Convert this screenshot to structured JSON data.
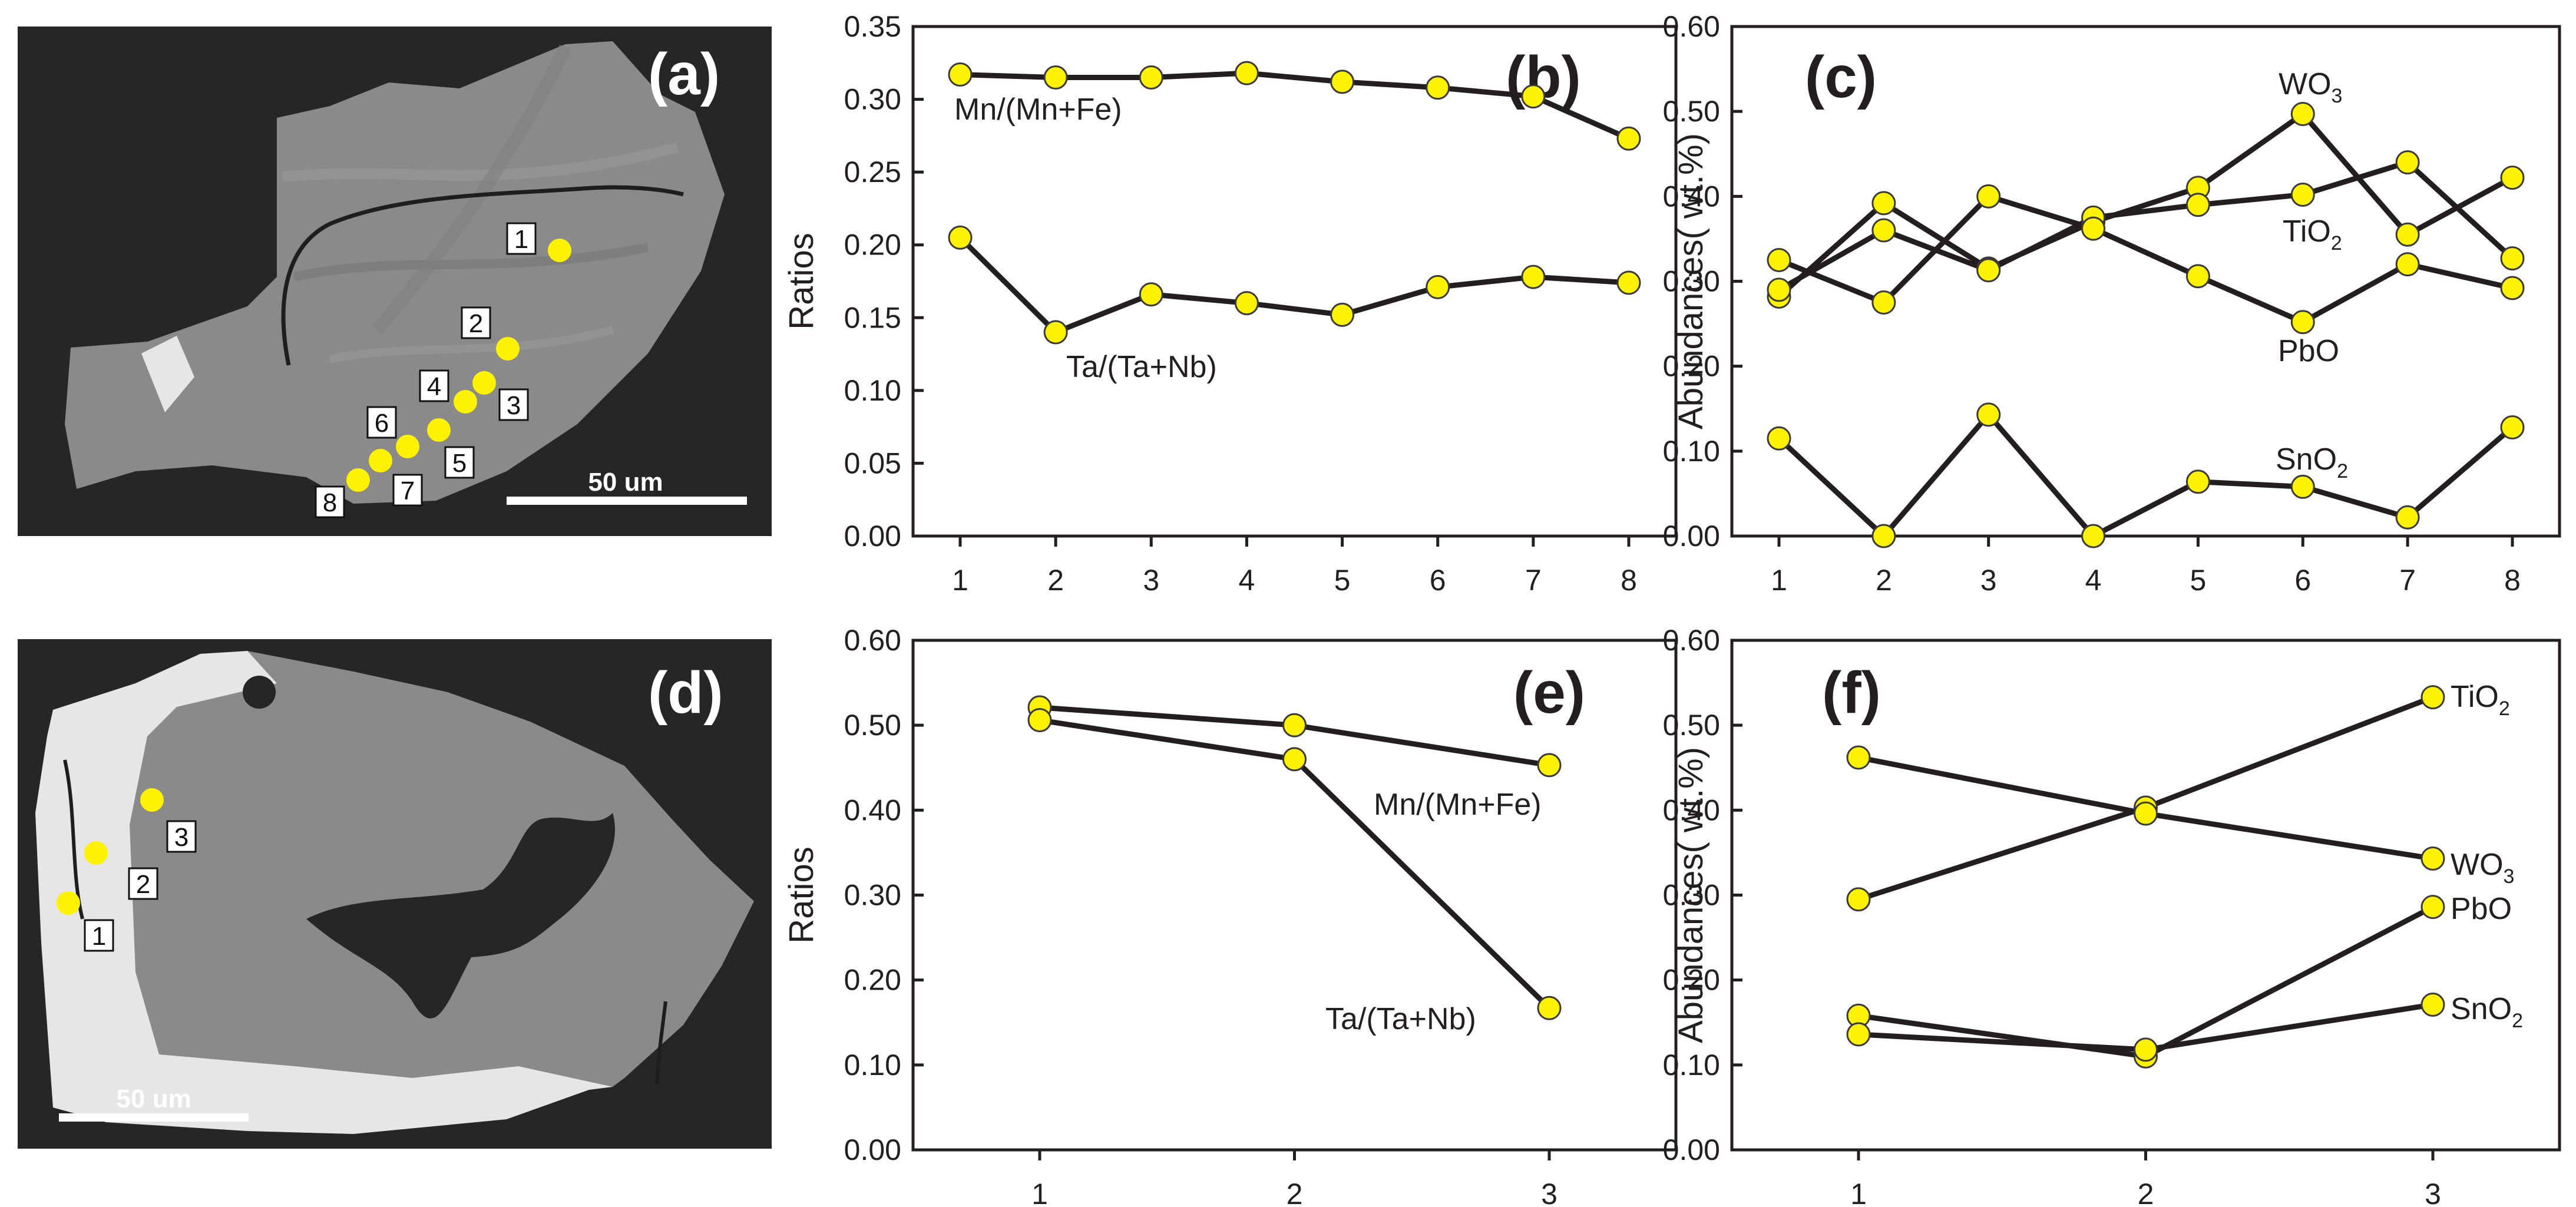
{
  "colors": {
    "marker": "#fff200",
    "line": "#231f20",
    "image_bg": "#262626",
    "grain": "#8a8a8a",
    "rim": "#e6e6e6"
  },
  "images": {
    "a": {
      "label": "(a)",
      "scale_text": "50 um",
      "spots": [
        "1",
        "2",
        "3",
        "4",
        "5",
        "6",
        "7",
        "8"
      ]
    },
    "d": {
      "label": "(d)",
      "scale_text": "50 um",
      "spots": [
        "1",
        "2",
        "3"
      ]
    }
  },
  "chart_data": [
    {
      "id": "b",
      "type": "line",
      "label": "(b)",
      "categories": [
        "1",
        "2",
        "3",
        "4",
        "5",
        "6",
        "7",
        "8"
      ],
      "ylabel": "Ratios",
      "ylim": [
        0,
        0.35
      ],
      "yticks": [
        "0.00",
        "0.05",
        "0.10",
        "0.15",
        "0.20",
        "0.25",
        "0.30",
        "0.35"
      ],
      "series": [
        {
          "name": "Mn/(Mn+Fe)",
          "values": [
            0.317,
            0.315,
            0.315,
            0.318,
            0.312,
            0.308,
            0.302,
            0.273
          ]
        },
        {
          "name": "Ta/(Ta+Nb)",
          "values": [
            0.205,
            0.14,
            0.166,
            0.16,
            0.152,
            0.171,
            0.178,
            0.174
          ]
        }
      ]
    },
    {
      "id": "c",
      "type": "line",
      "label": "(c)",
      "categories": [
        "1",
        "2",
        "3",
        "4",
        "5",
        "6",
        "7",
        "8"
      ],
      "ylabel": "Abundances( wt.%)",
      "ylim": [
        0,
        0.6
      ],
      "yticks": [
        "0.00",
        "0.10",
        "0.20",
        "0.30",
        "0.40",
        "0.50",
        "0.60"
      ],
      "series": [
        {
          "name": "WO",
          "sub": "3",
          "values": [
            0.282,
            0.392,
            0.315,
            0.37,
            0.41,
            0.497,
            0.355,
            0.422
          ]
        },
        {
          "name": "TiO",
          "sub": "2",
          "values": [
            0.29,
            0.36,
            0.313,
            0.375,
            0.39,
            0.402,
            0.44,
            0.327
          ]
        },
        {
          "name": "PbO",
          "sub": "",
          "values": [
            0.325,
            0.275,
            0.4,
            0.362,
            0.306,
            0.252,
            0.32,
            0.292
          ]
        },
        {
          "name": "SnO",
          "sub": "2",
          "values": [
            0.115,
            0.0,
            0.143,
            0.0,
            0.064,
            0.058,
            0.022,
            0.128
          ]
        }
      ]
    },
    {
      "id": "e",
      "type": "line",
      "label": "(e)",
      "categories": [
        "1",
        "2",
        "3"
      ],
      "ylabel": "Ratios",
      "ylim": [
        0,
        0.6
      ],
      "yticks": [
        "0.00",
        "0.10",
        "0.20",
        "0.30",
        "0.40",
        "0.50",
        "0.60"
      ],
      "series": [
        {
          "name": "Mn/(Mn+Fe)",
          "values": [
            0.521,
            0.5,
            0.453
          ]
        },
        {
          "name": "Ta/(Ta+Nb)",
          "values": [
            0.506,
            0.46,
            0.167
          ]
        }
      ]
    },
    {
      "id": "f",
      "type": "line",
      "label": "(f)",
      "categories": [
        "1",
        "2",
        "3"
      ],
      "ylabel": "Abundances( wt.%)",
      "ylim": [
        0,
        0.6
      ],
      "yticks": [
        "0.00",
        "0.10",
        "0.20",
        "0.30",
        "0.40",
        "0.50",
        "0.60"
      ],
      "series": [
        {
          "name": "TiO",
          "sub": "2",
          "values": [
            0.295,
            0.403,
            0.533
          ]
        },
        {
          "name": "WO",
          "sub": "3",
          "values": [
            0.462,
            0.396,
            0.343
          ]
        },
        {
          "name": "PbO",
          "sub": "",
          "values": [
            0.158,
            0.11,
            0.286
          ]
        },
        {
          "name": "SnO",
          "sub": "2",
          "values": [
            0.136,
            0.118,
            0.171
          ]
        }
      ]
    }
  ]
}
